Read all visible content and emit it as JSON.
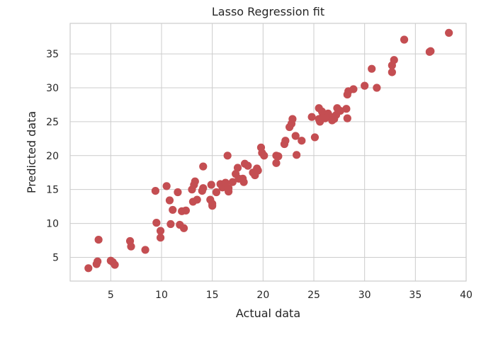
{
  "chart_data": {
    "type": "scatter",
    "title": "Lasso Regression fit",
    "xlabel": "Actual data",
    "ylabel": "Predicted data",
    "xlim": [
      1,
      40
    ],
    "ylim": [
      1.5,
      39.5
    ],
    "xticks": [
      5,
      10,
      15,
      20,
      25,
      30,
      35,
      40
    ],
    "yticks": [
      5,
      10,
      15,
      20,
      25,
      30,
      35
    ],
    "grid": true,
    "legend": "none",
    "marker_color": "#c44e52",
    "series": [
      {
        "points": [
          [
            2.8,
            3.4
          ],
          [
            3.6,
            4.0
          ],
          [
            3.7,
            4.4
          ],
          [
            3.8,
            7.6
          ],
          [
            5.0,
            4.5
          ],
          [
            5.2,
            4.3
          ],
          [
            5.4,
            3.9
          ],
          [
            6.9,
            7.4
          ],
          [
            7.0,
            6.6
          ],
          [
            8.4,
            6.1
          ],
          [
            9.4,
            14.8
          ],
          [
            9.5,
            10.1
          ],
          [
            9.9,
            8.9
          ],
          [
            9.9,
            7.9
          ],
          [
            10.5,
            15.5
          ],
          [
            10.8,
            13.4
          ],
          [
            10.9,
            9.9
          ],
          [
            11.1,
            12.0
          ],
          [
            11.6,
            14.6
          ],
          [
            11.8,
            9.8
          ],
          [
            12.0,
            11.8
          ],
          [
            12.2,
            9.3
          ],
          [
            12.4,
            11.9
          ],
          [
            13.0,
            15.0
          ],
          [
            13.1,
            13.2
          ],
          [
            13.2,
            15.7
          ],
          [
            13.3,
            16.2
          ],
          [
            13.5,
            13.5
          ],
          [
            14.0,
            14.8
          ],
          [
            14.1,
            18.4
          ],
          [
            14.1,
            15.2
          ],
          [
            14.8,
            13.5
          ],
          [
            14.9,
            15.7
          ],
          [
            15.0,
            12.6
          ],
          [
            15.0,
            12.9
          ],
          [
            15.4,
            14.6
          ],
          [
            15.8,
            15.8
          ],
          [
            16.0,
            15.3
          ],
          [
            16.3,
            16.0
          ],
          [
            16.5,
            20.0
          ],
          [
            16.6,
            14.7
          ],
          [
            16.6,
            15.2
          ],
          [
            17.0,
            16.1
          ],
          [
            17.3,
            17.3
          ],
          [
            17.5,
            18.2
          ],
          [
            17.6,
            16.6
          ],
          [
            18.0,
            16.6
          ],
          [
            18.1,
            16.1
          ],
          [
            18.2,
            18.8
          ],
          [
            18.5,
            18.5
          ],
          [
            19.0,
            17.5
          ],
          [
            19.2,
            17.1
          ],
          [
            19.4,
            18.1
          ],
          [
            19.5,
            17.8
          ],
          [
            19.8,
            21.2
          ],
          [
            19.9,
            20.4
          ],
          [
            20.1,
            20.0
          ],
          [
            21.3,
            18.9
          ],
          [
            21.3,
            20.0
          ],
          [
            21.5,
            19.9
          ],
          [
            22.1,
            21.7
          ],
          [
            22.2,
            22.2
          ],
          [
            22.6,
            24.2
          ],
          [
            22.8,
            24.7
          ],
          [
            22.9,
            25.4
          ],
          [
            23.2,
            22.9
          ],
          [
            23.3,
            20.1
          ],
          [
            23.8,
            22.2
          ],
          [
            24.8,
            25.7
          ],
          [
            25.1,
            22.7
          ],
          [
            25.5,
            25.4
          ],
          [
            25.5,
            27.0
          ],
          [
            25.6,
            25.0
          ],
          [
            25.8,
            26.5
          ],
          [
            25.9,
            26.0
          ],
          [
            26.1,
            25.5
          ],
          [
            26.4,
            26.2
          ],
          [
            26.7,
            25.7
          ],
          [
            26.8,
            25.2
          ],
          [
            27.0,
            25.4
          ],
          [
            27.2,
            26.0
          ],
          [
            27.3,
            27.0
          ],
          [
            27.6,
            26.6
          ],
          [
            28.2,
            26.9
          ],
          [
            28.3,
            25.5
          ],
          [
            28.3,
            29.0
          ],
          [
            28.4,
            29.5
          ],
          [
            28.9,
            29.8
          ],
          [
            30.0,
            30.3
          ],
          [
            30.7,
            32.8
          ],
          [
            31.2,
            30.0
          ],
          [
            32.7,
            32.3
          ],
          [
            32.7,
            33.3
          ],
          [
            32.9,
            34.1
          ],
          [
            33.9,
            37.1
          ],
          [
            36.4,
            35.3
          ],
          [
            36.5,
            35.4
          ],
          [
            38.3,
            38.1
          ]
        ]
      }
    ]
  }
}
